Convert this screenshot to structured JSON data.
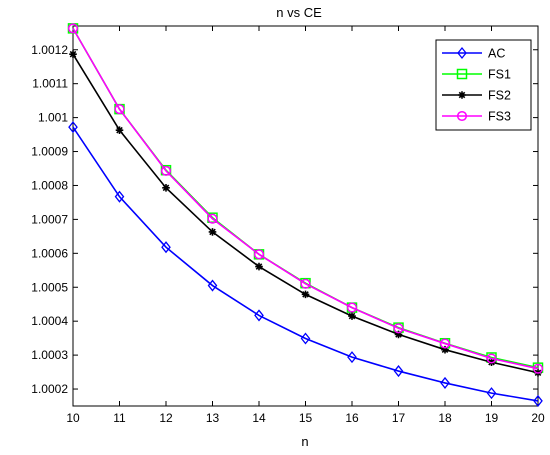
{
  "chart_data": {
    "type": "line",
    "title": "n vs CE",
    "xlabel": "n",
    "ylabel": "",
    "xlim": [
      10,
      20
    ],
    "ylim": [
      1.00015,
      1.00127
    ],
    "x_ticks": [
      "10",
      "11",
      "12",
      "13",
      "14",
      "15",
      "16",
      "17",
      "18",
      "19",
      "20"
    ],
    "y_ticks": [
      "1.0002",
      "1.0003",
      "1.0004",
      "1.0005",
      "1.0006",
      "1.0007",
      "1.0008",
      "1.0009",
      "1.001",
      "1.0011",
      "1.0012"
    ],
    "x": [
      10,
      11,
      12,
      13,
      14,
      15,
      16,
      17,
      18,
      19,
      20
    ],
    "grid": false,
    "legend_position": "top-right",
    "series": [
      {
        "name": "AC",
        "color": "#0000ff",
        "marker": "diamond",
        "values": [
          1.000972,
          1.000767,
          1.000618,
          1.000505,
          1.000417,
          1.000349,
          1.000294,
          1.000253,
          1.000218,
          1.000188,
          1.000165
        ]
      },
      {
        "name": "FS1",
        "color": "#00ff00",
        "marker": "square",
        "values": [
          1.001263,
          1.001025,
          1.000845,
          1.000705,
          1.000597,
          1.000512,
          1.00044,
          1.000381,
          1.000335,
          1.000293,
          1.000263
        ]
      },
      {
        "name": "FS2",
        "color": "#000000",
        "marker": "star",
        "values": [
          1.001187,
          1.000963,
          1.000793,
          1.000663,
          1.000561,
          1.000479,
          1.000415,
          1.000361,
          1.000316,
          1.000279,
          1.000248
        ]
      },
      {
        "name": "FS3",
        "color": "#ff00ff",
        "marker": "circle",
        "values": [
          1.001263,
          1.001025,
          1.000843,
          1.000702,
          1.000597,
          1.00051,
          1.00044,
          1.000379,
          1.000334,
          1.00029,
          1.00026
        ]
      }
    ]
  }
}
